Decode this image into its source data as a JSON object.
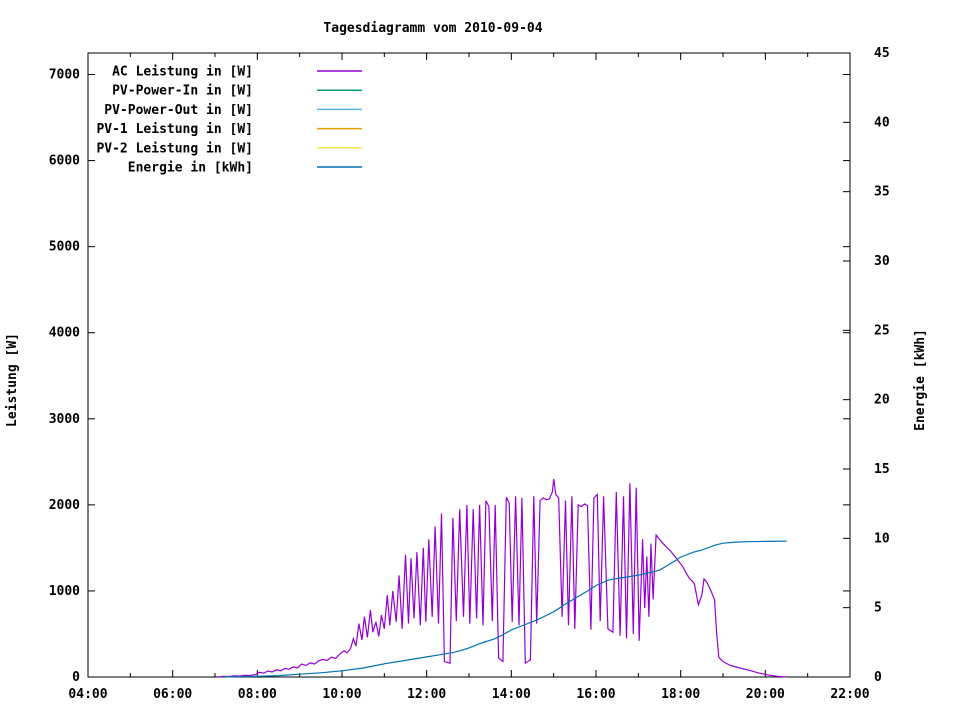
{
  "chart": {
    "title": "Tagesdiagramm vom 2010-09-04",
    "ylabel": "Leistung [W]",
    "y2label": "Energie [kWh]"
  },
  "chart_data": {
    "type": "line",
    "title": "Tagesdiagramm vom 2010-09-04",
    "xlabel": "",
    "ylabel": "Leistung [W]",
    "y2label": "Energie [kWh]",
    "grid": false,
    "legend_position": "top-left-inside",
    "xlim": [
      4,
      22
    ],
    "ylim": [
      0,
      7250
    ],
    "y2lim": [
      0,
      45
    ],
    "x_ticks": [
      {
        "hour": 4,
        "label": "04:00"
      },
      {
        "hour": 6,
        "label": "06:00"
      },
      {
        "hour": 8,
        "label": "08:00"
      },
      {
        "hour": 10,
        "label": "10:00"
      },
      {
        "hour": 12,
        "label": "12:00"
      },
      {
        "hour": 14,
        "label": "14:00"
      },
      {
        "hour": 16,
        "label": "16:00"
      },
      {
        "hour": 18,
        "label": "18:00"
      },
      {
        "hour": 20,
        "label": "20:00"
      },
      {
        "hour": 22,
        "label": "22:00"
      }
    ],
    "x_minor_hours": [
      5,
      7,
      9,
      11,
      13,
      15,
      17,
      19,
      21
    ],
    "y_ticks": [
      0,
      1000,
      2000,
      3000,
      4000,
      5000,
      6000,
      7000
    ],
    "y2_ticks": [
      0,
      5,
      10,
      15,
      20,
      25,
      30,
      35,
      40,
      45
    ],
    "series": [
      {
        "name": "AC Leistung in [W]",
        "color": "#9400d3",
        "axis": "y",
        "points": [
          [
            7.08,
            0
          ],
          [
            7.2,
            8
          ],
          [
            7.32,
            5
          ],
          [
            7.45,
            14
          ],
          [
            7.58,
            10
          ],
          [
            7.7,
            20
          ],
          [
            7.82,
            18
          ],
          [
            7.95,
            28
          ],
          [
            8.05,
            55
          ],
          [
            8.15,
            45
          ],
          [
            8.25,
            70
          ],
          [
            8.35,
            58
          ],
          [
            8.45,
            85
          ],
          [
            8.55,
            72
          ],
          [
            8.65,
            100
          ],
          [
            8.75,
            90
          ],
          [
            8.85,
            118
          ],
          [
            8.95,
            105
          ],
          [
            9.05,
            150
          ],
          [
            9.15,
            135
          ],
          [
            9.25,
            165
          ],
          [
            9.35,
            150
          ],
          [
            9.45,
            188
          ],
          [
            9.55,
            205
          ],
          [
            9.65,
            192
          ],
          [
            9.75,
            230
          ],
          [
            9.85,
            215
          ],
          [
            9.95,
            268
          ],
          [
            10.05,
            305
          ],
          [
            10.12,
            282
          ],
          [
            10.2,
            330
          ],
          [
            10.27,
            445
          ],
          [
            10.33,
            360
          ],
          [
            10.4,
            620
          ],
          [
            10.47,
            430
          ],
          [
            10.53,
            700
          ],
          [
            10.6,
            460
          ],
          [
            10.67,
            780
          ],
          [
            10.73,
            520
          ],
          [
            10.8,
            640
          ],
          [
            10.87,
            470
          ],
          [
            10.93,
            720
          ],
          [
            11.0,
            560
          ],
          [
            11.07,
            950
          ],
          [
            11.13,
            600
          ],
          [
            11.2,
            1000
          ],
          [
            11.28,
            640
          ],
          [
            11.35,
            1180
          ],
          [
            11.42,
            560
          ],
          [
            11.5,
            1420
          ],
          [
            11.57,
            620
          ],
          [
            11.63,
            1380
          ],
          [
            11.7,
            680
          ],
          [
            11.77,
            1450
          ],
          [
            11.85,
            600
          ],
          [
            11.92,
            1500
          ],
          [
            11.98,
            640
          ],
          [
            12.05,
            1600
          ],
          [
            12.13,
            700
          ],
          [
            12.2,
            1750
          ],
          [
            12.28,
            620
          ],
          [
            12.35,
            1900
          ],
          [
            12.42,
            180
          ],
          [
            12.55,
            160
          ],
          [
            12.62,
            1850
          ],
          [
            12.7,
            650
          ],
          [
            12.78,
            1950
          ],
          [
            12.87,
            700
          ],
          [
            12.95,
            2000
          ],
          [
            13.02,
            620
          ],
          [
            13.1,
            1950
          ],
          [
            13.18,
            680
          ],
          [
            13.25,
            2000
          ],
          [
            13.33,
            600
          ],
          [
            13.4,
            2050
          ],
          [
            13.47,
            1980
          ],
          [
            13.55,
            650
          ],
          [
            13.62,
            2000
          ],
          [
            13.7,
            220
          ],
          [
            13.8,
            180
          ],
          [
            13.88,
            2090
          ],
          [
            13.95,
            2020
          ],
          [
            14.02,
            640
          ],
          [
            14.1,
            2100
          ],
          [
            14.18,
            600
          ],
          [
            14.25,
            2080
          ],
          [
            14.33,
            160
          ],
          [
            14.45,
            200
          ],
          [
            14.53,
            2100
          ],
          [
            14.6,
            620
          ],
          [
            14.68,
            2050
          ],
          [
            14.75,
            2080
          ],
          [
            14.83,
            2060
          ],
          [
            14.9,
            2070
          ],
          [
            14.97,
            2150
          ],
          [
            15.0,
            2300
          ],
          [
            15.05,
            2120
          ],
          [
            15.12,
            2080
          ],
          [
            15.2,
            700
          ],
          [
            15.28,
            2050
          ],
          [
            15.35,
            600
          ],
          [
            15.43,
            2100
          ],
          [
            15.5,
            560
          ],
          [
            15.58,
            2000
          ],
          [
            15.65,
            1980
          ],
          [
            15.73,
            2010
          ],
          [
            15.8,
            1990
          ],
          [
            15.88,
            550
          ],
          [
            15.95,
            2080
          ],
          [
            16.03,
            2120
          ],
          [
            16.1,
            650
          ],
          [
            16.18,
            2100
          ],
          [
            16.28,
            560
          ],
          [
            16.4,
            520
          ],
          [
            16.48,
            2150
          ],
          [
            16.57,
            480
          ],
          [
            16.65,
            2100
          ],
          [
            16.72,
            450
          ],
          [
            16.8,
            2250
          ],
          [
            16.88,
            500
          ],
          [
            16.95,
            2200
          ],
          [
            17.02,
            420
          ],
          [
            17.1,
            1600
          ],
          [
            17.15,
            800
          ],
          [
            17.2,
            1400
          ],
          [
            17.25,
            700
          ],
          [
            17.3,
            1550
          ],
          [
            17.35,
            900
          ],
          [
            17.42,
            1650
          ],
          [
            17.5,
            1600
          ],
          [
            17.62,
            1530
          ],
          [
            17.75,
            1470
          ],
          [
            17.9,
            1380
          ],
          [
            18.05,
            1280
          ],
          [
            18.2,
            1150
          ],
          [
            18.32,
            1090
          ],
          [
            18.42,
            840
          ],
          [
            18.5,
            950
          ],
          [
            18.55,
            1140
          ],
          [
            18.62,
            1100
          ],
          [
            18.7,
            1020
          ],
          [
            18.8,
            900
          ],
          [
            18.85,
            500
          ],
          [
            18.9,
            230
          ],
          [
            19.0,
            180
          ],
          [
            19.15,
            140
          ],
          [
            19.35,
            110
          ],
          [
            19.6,
            80
          ],
          [
            19.85,
            45
          ],
          [
            20.1,
            20
          ],
          [
            20.3,
            8
          ],
          [
            20.5,
            0
          ]
        ]
      },
      {
        "name": "PV-Power-In in [W]",
        "color": "#009e73",
        "axis": "y",
        "points": []
      },
      {
        "name": "PV-Power-Out in [W]",
        "color": "#56b4e9",
        "axis": "y",
        "points": []
      },
      {
        "name": "PV-1 Leistung in [W]",
        "color": "#e69f00",
        "axis": "y",
        "points": []
      },
      {
        "name": "PV-2 Leistung in [W]",
        "color": "#f0e442",
        "axis": "y",
        "points": []
      },
      {
        "name": "Energie in [kWh]",
        "color": "#0072b2",
        "axis": "y2",
        "points": [
          [
            7.2,
            0
          ],
          [
            7.6,
            0.02
          ],
          [
            8.0,
            0.05
          ],
          [
            8.5,
            0.1
          ],
          [
            9.0,
            0.2
          ],
          [
            9.5,
            0.3
          ],
          [
            10.0,
            0.45
          ],
          [
            10.5,
            0.65
          ],
          [
            11.0,
            0.95
          ],
          [
            11.5,
            1.2
          ],
          [
            12.0,
            1.45
          ],
          [
            12.3,
            1.6
          ],
          [
            12.6,
            1.75
          ],
          [
            12.8,
            1.9
          ],
          [
            13.0,
            2.1
          ],
          [
            13.3,
            2.45
          ],
          [
            13.6,
            2.75
          ],
          [
            13.8,
            3.05
          ],
          [
            14.0,
            3.4
          ],
          [
            14.3,
            3.75
          ],
          [
            14.6,
            4.1
          ],
          [
            14.8,
            4.4
          ],
          [
            15.0,
            4.7
          ],
          [
            15.3,
            5.3
          ],
          [
            15.6,
            5.85
          ],
          [
            15.8,
            6.2
          ],
          [
            16.0,
            6.6
          ],
          [
            16.3,
            7.0
          ],
          [
            16.6,
            7.15
          ],
          [
            16.8,
            7.25
          ],
          [
            17.0,
            7.35
          ],
          [
            17.3,
            7.55
          ],
          [
            17.5,
            7.7
          ],
          [
            17.8,
            8.25
          ],
          [
            18.0,
            8.65
          ],
          [
            18.3,
            9.0
          ],
          [
            18.5,
            9.15
          ],
          [
            18.8,
            9.5
          ],
          [
            19.0,
            9.65
          ],
          [
            19.3,
            9.73
          ],
          [
            19.6,
            9.76
          ],
          [
            20.0,
            9.78
          ],
          [
            20.5,
            9.8
          ]
        ]
      }
    ]
  }
}
